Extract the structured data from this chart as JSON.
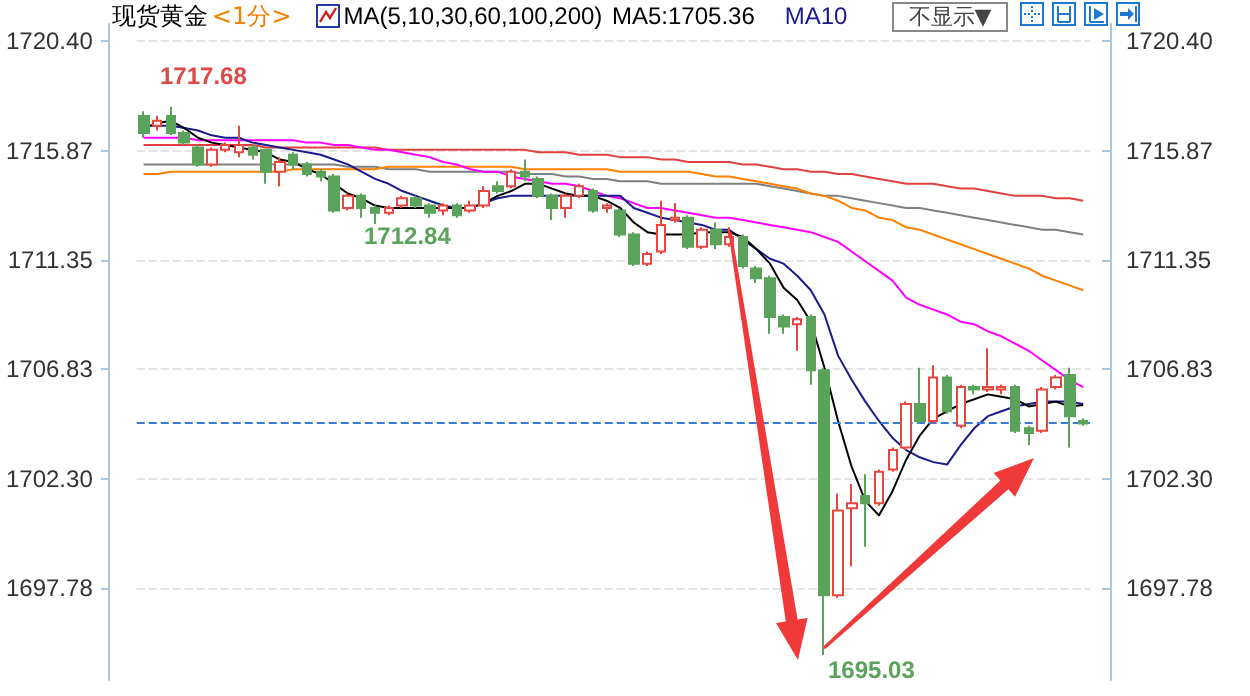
{
  "chart_data": {
    "type": "candlestick",
    "title": "现货黄金",
    "subtitle": "<1分>",
    "annotations": [
      "MA(5,10,30,60,100,200)",
      "不显示▼",
      "1717.68",
      "1712.84",
      "1695.03"
    ],
    "categories": [
      null,
      null,
      null,
      null,
      null,
      null,
      null,
      null,
      null,
      null,
      null,
      null,
      null,
      null,
      null,
      null,
      null,
      null,
      null,
      null,
      null,
      null,
      null,
      null,
      null,
      null,
      null,
      null,
      null,
      null,
      null,
      null,
      null,
      null,
      null,
      null,
      null,
      null,
      null,
      null,
      null,
      null,
      null,
      null,
      null,
      null,
      null,
      null,
      null,
      null,
      null,
      null,
      null,
      null,
      null,
      null,
      null,
      null,
      null,
      null,
      null,
      null,
      null,
      null,
      null,
      null,
      null,
      null,
      null,
      null
    ],
    "series": [
      {
        "type": "candlestick",
        "ohlc": [
          [
            1717.3,
            1717.5,
            1716.4,
            1716.6
          ],
          [
            1716.9,
            1717.3,
            1716.7,
            1717.1
          ],
          [
            1717.3,
            1717.68,
            1716.5,
            1716.6
          ],
          [
            1716.6,
            1716.7,
            1716.1,
            1716.2
          ],
          [
            1716.0,
            1716.1,
            1715.2,
            1715.3
          ],
          [
            1715.3,
            1716.0,
            1715.2,
            1715.9
          ],
          [
            1715.9,
            1716.2,
            1715.8,
            1716.1
          ],
          [
            1715.8,
            1716.9,
            1715.6,
            1716.1
          ],
          [
            1716.0,
            1716.1,
            1715.5,
            1715.7
          ],
          [
            1715.9,
            1715.9,
            1714.5,
            1715.0
          ],
          [
            1715.0,
            1715.6,
            1714.4,
            1715.4
          ],
          [
            1715.7,
            1715.8,
            1715.1,
            1715.3
          ],
          [
            1715.3,
            1715.4,
            1714.8,
            1714.9
          ],
          [
            1715.0,
            1715.1,
            1714.6,
            1714.8
          ],
          [
            1714.8,
            1714.9,
            1713.3,
            1713.4
          ],
          [
            1713.5,
            1714.1,
            1713.4,
            1714.0
          ],
          [
            1714.0,
            1714.1,
            1713.1,
            1713.5
          ],
          [
            1713.5,
            1713.6,
            1712.84,
            1713.3
          ],
          [
            1713.3,
            1713.6,
            1713.2,
            1713.5
          ],
          [
            1713.6,
            1714.0,
            1713.5,
            1713.9
          ],
          [
            1713.9,
            1714.0,
            1713.5,
            1713.6
          ],
          [
            1713.6,
            1713.7,
            1713.1,
            1713.3
          ],
          [
            1713.4,
            1713.7,
            1713.2,
            1713.6
          ],
          [
            1713.6,
            1713.7,
            1713.1,
            1713.2
          ],
          [
            1713.4,
            1713.8,
            1713.3,
            1713.6
          ],
          [
            1713.6,
            1714.4,
            1713.5,
            1714.2
          ],
          [
            1714.4,
            1714.6,
            1714.1,
            1714.2
          ],
          [
            1714.4,
            1715.1,
            1714.3,
            1715.0
          ],
          [
            1715.0,
            1715.5,
            1714.6,
            1714.8
          ],
          [
            1714.7,
            1714.8,
            1713.9,
            1714.0
          ],
          [
            1714.0,
            1714.1,
            1713.0,
            1713.5
          ],
          [
            1713.5,
            1714.1,
            1713.1,
            1714.0
          ],
          [
            1714.0,
            1714.5,
            1713.9,
            1714.4
          ],
          [
            1714.2,
            1714.3,
            1713.3,
            1713.4
          ],
          [
            1713.5,
            1713.7,
            1713.3,
            1713.6
          ],
          [
            1713.4,
            1713.5,
            1712.3,
            1712.4
          ],
          [
            1712.4,
            1712.5,
            1711.1,
            1711.2
          ],
          [
            1711.2,
            1711.7,
            1711.1,
            1711.6
          ],
          [
            1711.7,
            1713.8,
            1711.6,
            1712.8
          ],
          [
            1713.0,
            1713.7,
            1712.9,
            1713.1
          ],
          [
            1713.1,
            1713.2,
            1711.8,
            1711.9
          ],
          [
            1711.9,
            1712.7,
            1711.8,
            1712.6
          ],
          [
            1712.6,
            1712.9,
            1711.8,
            1712.0
          ],
          [
            1712.0,
            1712.7,
            1711.9,
            1712.3
          ],
          [
            1712.3,
            1712.4,
            1711.0,
            1711.1
          ],
          [
            1711.0,
            1711.1,
            1710.4,
            1710.6
          ],
          [
            1710.6,
            1710.7,
            1708.3,
            1709.0
          ],
          [
            1709.0,
            1709.1,
            1708.3,
            1708.6
          ],
          [
            1708.7,
            1709.0,
            1707.6,
            1708.9
          ],
          [
            1709.0,
            1709.1,
            1706.2,
            1706.8
          ],
          [
            1706.8,
            1706.9,
            1695.03,
            1697.5
          ],
          [
            1697.5,
            1701.7,
            1697.4,
            1701.0
          ],
          [
            1701.1,
            1702.1,
            1698.7,
            1701.3
          ],
          [
            1701.6,
            1702.5,
            1699.5,
            1701.3
          ],
          [
            1701.3,
            1702.7,
            1701.2,
            1702.6
          ],
          [
            1702.7,
            1703.6,
            1702.6,
            1703.5
          ],
          [
            1703.6,
            1705.5,
            1703.5,
            1705.4
          ],
          [
            1705.4,
            1706.9,
            1704.6,
            1704.7
          ],
          [
            1704.7,
            1707.0,
            1704.6,
            1706.5
          ],
          [
            1706.5,
            1706.6,
            1705.0,
            1705.1
          ],
          [
            1704.5,
            1706.2,
            1704.4,
            1706.1
          ],
          [
            1706.1,
            1706.2,
            1705.8,
            1706.0
          ],
          [
            1706.0,
            1707.7,
            1705.9,
            1706.1
          ],
          [
            1706.0,
            1706.2,
            1705.8,
            1706.1
          ],
          [
            1706.1,
            1706.2,
            1704.2,
            1704.3
          ],
          [
            1704.4,
            1704.5,
            1703.7,
            1704.2
          ],
          [
            1704.3,
            1706.1,
            1704.2,
            1706.0
          ],
          [
            1706.1,
            1706.6,
            1706.0,
            1706.5
          ],
          [
            1706.6,
            1706.9,
            1703.6,
            1704.9
          ],
          [
            1704.7,
            1704.8,
            1704.5,
            1704.6
          ]
        ],
        "colors": [
          "#5ba35b",
          "#e8473f",
          "#5ba35b",
          "#5ba35b",
          "#5ba35b",
          "#e8473f",
          "#e8473f",
          "#e8473f",
          "#5ba35b",
          "#5ba35b",
          "#e8473f",
          "#5ba35b",
          "#5ba35b",
          "#5ba35b",
          "#5ba35b",
          "#e8473f",
          "#5ba35b",
          "#5ba35b",
          "#e8473f",
          "#e8473f",
          "#5ba35b",
          "#5ba35b",
          "#e8473f",
          "#5ba35b",
          "#e8473f",
          "#e8473f",
          "#5ba35b",
          "#e8473f",
          "#5ba35b",
          "#5ba35b",
          "#5ba35b",
          "#e8473f",
          "#e8473f",
          "#5ba35b",
          "#e8473f",
          "#5ba35b",
          "#5ba35b",
          "#e8473f",
          "#e8473f",
          "#e8473f",
          "#5ba35b",
          "#e8473f",
          "#5ba35b",
          "#e8473f",
          "#5ba35b",
          "#5ba35b",
          "#5ba35b",
          "#5ba35b",
          "#e8473f",
          "#5ba35b",
          "#5ba35b",
          "#e8473f",
          "#e8473f",
          "#5ba35b",
          "#e8473f",
          "#e8473f",
          "#e8473f",
          "#5ba35b",
          "#e8473f",
          "#5ba35b",
          "#e8473f",
          "#5ba35b",
          "#e8473f",
          "#e8473f",
          "#5ba35b",
          "#5ba35b",
          "#e8473f",
          "#e8473f",
          "#5ba35b",
          "#5ba35b"
        ]
      },
      {
        "type": "line",
        "color": "#e04040",
        "values": [
          1716.1,
          1716.1,
          1716.1,
          1716.1,
          1716.1,
          1716.1,
          1716.1,
          1716.1,
          1716.1,
          1716.0,
          1716.0,
          1716.0,
          1716.0,
          1716.0,
          1716.0,
          1716.0,
          1716.0,
          1716.0,
          1715.9,
          1715.9,
          1715.9,
          1715.9,
          1715.9,
          1715.9,
          1715.9,
          1715.9,
          1715.9,
          1715.9,
          1715.9,
          1715.8,
          1715.8,
          1715.8,
          1715.7,
          1715.7,
          1715.7,
          1715.6,
          1715.6,
          1715.6,
          1715.5,
          1715.5,
          1715.4,
          1715.4,
          1715.4,
          1715.4,
          1715.3,
          1715.3,
          1715.2,
          1715.1,
          1715.1,
          1715.0,
          1715.0,
          1714.9,
          1714.9,
          1714.8,
          1714.7,
          1714.6,
          1714.5,
          1714.5,
          1714.5,
          1714.4,
          1714.3,
          1714.3,
          1714.2,
          1714.1,
          1714.0,
          1714.0,
          1714.0,
          1713.9,
          1713.9,
          1713.8
        ]
      },
      {
        "type": "line",
        "color": "#808080",
        "values": [
          1715.3,
          1715.3,
          1715.3,
          1715.3,
          1715.3,
          1715.3,
          1715.3,
          1715.3,
          1715.3,
          1715.3,
          1715.3,
          1715.3,
          1715.3,
          1715.3,
          1715.3,
          1715.2,
          1715.2,
          1715.2,
          1715.1,
          1715.1,
          1715.1,
          1715.0,
          1715.0,
          1715.0,
          1715.0,
          1715.0,
          1715.0,
          1715.0,
          1714.9,
          1714.9,
          1714.9,
          1714.8,
          1714.8,
          1714.7,
          1714.7,
          1714.6,
          1714.6,
          1714.6,
          1714.5,
          1714.5,
          1714.5,
          1714.5,
          1714.5,
          1714.5,
          1714.5,
          1714.5,
          1714.4,
          1714.3,
          1714.2,
          1714.1,
          1714.0,
          1714.0,
          1713.9,
          1713.8,
          1713.7,
          1713.6,
          1713.5,
          1713.5,
          1713.4,
          1713.3,
          1713.2,
          1713.1,
          1713.0,
          1712.9,
          1712.8,
          1712.7,
          1712.6,
          1712.6,
          1712.5,
          1712.4
        ]
      },
      {
        "type": "line",
        "color": "#ff8000",
        "values": [
          1714.9,
          1714.9,
          1715.0,
          1715.0,
          1715.0,
          1715.0,
          1715.0,
          1715.0,
          1715.0,
          1715.0,
          1715.0,
          1715.1,
          1715.1,
          1715.1,
          1715.1,
          1715.1,
          1715.1,
          1715.1,
          1715.2,
          1715.2,
          1715.2,
          1715.2,
          1715.2,
          1715.2,
          1715.2,
          1715.2,
          1715.2,
          1715.2,
          1715.1,
          1715.1,
          1715.1,
          1715.1,
          1715.1,
          1715.1,
          1715.1,
          1715.0,
          1715.0,
          1715.0,
          1715.0,
          1715.0,
          1715.0,
          1714.9,
          1714.8,
          1714.8,
          1714.7,
          1714.6,
          1714.5,
          1714.4,
          1714.3,
          1714.1,
          1714.0,
          1713.8,
          1713.5,
          1713.4,
          1713.1,
          1713.0,
          1712.7,
          1712.6,
          1712.4,
          1712.2,
          1712.0,
          1711.8,
          1711.6,
          1711.4,
          1711.2,
          1711.0,
          1710.7,
          1710.5,
          1710.3,
          1710.1
        ]
      },
      {
        "type": "line",
        "color": "#ff00ff",
        "values": [
          1716.4,
          1716.4,
          1716.4,
          1716.4,
          1716.3,
          1716.3,
          1716.3,
          1716.3,
          1716.3,
          1716.3,
          1716.3,
          1716.3,
          1716.2,
          1716.2,
          1716.1,
          1716.1,
          1716.0,
          1715.9,
          1715.9,
          1715.8,
          1715.7,
          1715.6,
          1715.4,
          1715.3,
          1715.1,
          1715.0,
          1715.0,
          1714.8,
          1714.7,
          1714.6,
          1714.5,
          1714.5,
          1714.4,
          1714.2,
          1714.0,
          1713.9,
          1713.7,
          1713.5,
          1713.5,
          1713.4,
          1713.3,
          1713.2,
          1713.1,
          1713.1,
          1713.0,
          1712.9,
          1712.8,
          1712.7,
          1712.6,
          1712.5,
          1712.3,
          1712.1,
          1711.7,
          1711.3,
          1710.9,
          1710.5,
          1709.8,
          1709.5,
          1709.3,
          1709.1,
          1708.8,
          1708.7,
          1708.4,
          1708.2,
          1707.9,
          1707.6,
          1707.2,
          1706.8,
          1706.4,
          1706.1
        ]
      },
      {
        "type": "line",
        "name": "MA10",
        "color": "#1a1a8c",
        "values": [
          1716.9,
          1716.9,
          1716.9,
          1716.8,
          1716.7,
          1716.5,
          1716.4,
          1716.4,
          1716.2,
          1716.1,
          1716.0,
          1715.9,
          1715.8,
          1715.7,
          1715.5,
          1715.3,
          1715.0,
          1714.7,
          1714.5,
          1714.2,
          1714.0,
          1713.8,
          1713.6,
          1713.5,
          1713.5,
          1713.7,
          1713.9,
          1714.0,
          1714.0,
          1714.0,
          1714.0,
          1714.0,
          1714.0,
          1714.0,
          1714.0,
          1714.0,
          1713.5,
          1713.3,
          1713.1,
          1713.0,
          1712.9,
          1712.8,
          1712.6,
          1712.6,
          1712.2,
          1711.8,
          1711.4,
          1711.2,
          1710.7,
          1710.1,
          1709.1,
          1707.4,
          1706.4,
          1705.5,
          1704.7,
          1704.0,
          1703.5,
          1703.2,
          1703.0,
          1702.9,
          1703.7,
          1704.4,
          1704.9,
          1705.1,
          1705.3,
          1705.4,
          1705.5,
          1705.5,
          1705.5,
          1705.4
        ]
      },
      {
        "type": "line",
        "name": "MA5:1705.36",
        "color": "#000000",
        "values": [
          1716.8,
          1717.0,
          1717.1,
          1716.8,
          1716.4,
          1716.2,
          1716.1,
          1716.0,
          1715.9,
          1715.8,
          1715.5,
          1715.4,
          1715.1,
          1714.9,
          1714.5,
          1714.1,
          1713.9,
          1713.6,
          1713.5,
          1713.5,
          1713.5,
          1713.5,
          1713.5,
          1713.5,
          1713.5,
          1713.7,
          1714.0,
          1714.2,
          1714.5,
          1714.5,
          1714.3,
          1714.1,
          1714.0,
          1714.0,
          1713.8,
          1713.5,
          1712.9,
          1712.5,
          1712.4,
          1712.4,
          1712.4,
          1712.5,
          1712.5,
          1712.5,
          1712.3,
          1711.8,
          1711.2,
          1710.2,
          1709.7,
          1708.8,
          1706.9,
          1704.7,
          1702.8,
          1701.4,
          1700.8,
          1701.8,
          1703.1,
          1704.1,
          1704.8,
          1705.1,
          1705.4,
          1705.6,
          1705.8,
          1705.7,
          1705.6,
          1705.3,
          1705.4,
          1705.5,
          1705.3,
          1705.36
        ]
      }
    ],
    "ylim": [
      1694.0,
      1721.1
    ],
    "yticks": [
      1697.78,
      {
        "value": 1702.3,
        "label": "1702.30"
      },
      1706.83,
      1711.35,
      1715.87,
      {
        "value": 1720.4,
        "label": "1720.40"
      }
    ],
    "y2lim": [
      1694.0,
      1721.1
    ],
    "y2ticks": [
      1697.78,
      {
        "value": 1702.3,
        "label": "1702.30"
      },
      1706.83,
      1711.35,
      1715.87,
      {
        "value": 1720.4,
        "label": "1720.40"
      }
    ],
    "ref_lines": [
      {
        "axis": "y",
        "value": 1704.6,
        "color": "#3a7bd5",
        "line_style": "dashed"
      }
    ],
    "grid": "y",
    "legend": "top right",
    "tick_labels": "y"
  }
}
